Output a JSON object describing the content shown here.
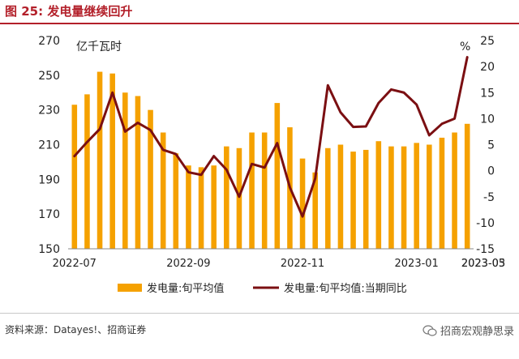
{
  "figure": {
    "title": "图 25:  发电量继续回升",
    "source": "资料来源：Datayes!、招商证券",
    "watermark": "招商宏观静思录",
    "watermark_icon": "wechat-icon"
  },
  "colors": {
    "title": "#b3202a",
    "bar": "#f5a100",
    "line": "#7b0f12",
    "axis": "#888888"
  },
  "chart_data": {
    "type": "bar",
    "left_axis": {
      "unit": "亿千瓦时",
      "ylim": [
        150,
        270
      ],
      "ticks": [
        150,
        170,
        190,
        210,
        230,
        250,
        270
      ]
    },
    "right_axis": {
      "unit": "%",
      "ylim": [
        -15,
        25
      ],
      "ticks": [
        -15,
        -10,
        -5,
        0,
        5,
        10,
        15,
        20,
        25
      ]
    },
    "x_ticks": [
      {
        "index": 0,
        "label": "2022-07"
      },
      {
        "index": 9,
        "label": "2022-09"
      },
      {
        "index": 18,
        "label": "2022-11"
      },
      {
        "index": 27,
        "label": "2023-01"
      },
      {
        "index": 36,
        "label": "2023-03"
      },
      {
        "index": 45,
        "label": "2023-05"
      }
    ],
    "grid": false,
    "legend_position": "bottom",
    "series": [
      {
        "name": "发电量:旬平均值",
        "type": "bar",
        "axis": "left",
        "values": [
          233,
          239,
          252,
          251,
          240,
          238,
          230,
          217,
          205,
          198,
          197,
          198,
          209,
          208,
          217,
          217,
          234,
          220,
          202,
          194,
          208,
          210,
          206,
          207,
          212,
          209,
          209,
          211,
          210,
          214,
          217,
          222
        ]
      },
      {
        "name": "发电量:旬平均值:当期同比",
        "type": "line",
        "axis": "right",
        "values": [
          2.8,
          5.5,
          8.0,
          15.0,
          7.5,
          9.2,
          7.8,
          4.0,
          3.2,
          -0.3,
          -0.8,
          2.8,
          0.2,
          -5.0,
          1.3,
          0.6,
          5.3,
          -3.2,
          -8.8,
          -1.5,
          16.4,
          11.2,
          8.4,
          8.5,
          13.0,
          15.6,
          15.0,
          12.7,
          6.8,
          9.0,
          10.0,
          21.8
        ]
      }
    ]
  }
}
